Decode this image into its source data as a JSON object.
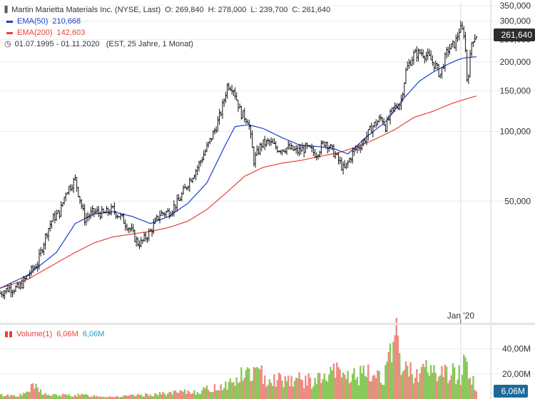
{
  "header": {
    "title": "Martin Marietta Materials Inc. (NYSE, Last)",
    "open": "O: 269,840",
    "high": "H: 278,000",
    "low": "L: 239,700",
    "close": "C: 261,640",
    "ema50_label": "EMA(50)",
    "ema50_value": "210,668",
    "ema200_label": "EMA(200)",
    "ema200_value": "142,603",
    "range": "01.07.1995 - 01.11.2020",
    "range_info": "(EST, 25 Jahre, 1 Monat)"
  },
  "volume_legend": {
    "label": "Volume(1)",
    "value_red": "6,06M",
    "value_teal": "6,06M"
  },
  "colors": {
    "ema50": "#1a3fd0",
    "ema200": "#e8403a",
    "candle": "#111111",
    "vol_up": "#88c95a",
    "vol_down": "#ef8a83",
    "badge": "#2d2d2d",
    "vol_badge": "#1d6a9a"
  },
  "chart_data": {
    "type": "line",
    "title": "Martin Marietta Materials Inc. (NYSE, Last)",
    "xlabel": "",
    "ylabel": "",
    "scale": "log",
    "ylim": [
      15,
      360
    ],
    "xlim": [
      1995.5,
      2020.84
    ],
    "y_ticks": [
      {
        "value": 350,
        "label": "350,000"
      },
      {
        "value": 300,
        "label": "300,000"
      },
      {
        "value": 250,
        "label": "250,000"
      },
      {
        "value": 200,
        "label": "200,000"
      },
      {
        "value": 150,
        "label": "150,000"
      },
      {
        "value": 100,
        "label": "100,000"
      },
      {
        "value": 50,
        "label": "50,000"
      }
    ],
    "x_ticks": [
      {
        "value": 2020.0,
        "label": "Jan '20"
      }
    ],
    "last_price": {
      "value": 261.64,
      "label": "261,640"
    },
    "price_anchors": {
      "x": [
        1995.5,
        1996.0,
        1996.5,
        1997.0,
        1997.5,
        1998.0,
        1998.3,
        1998.7,
        1999.0,
        1999.5,
        2000.0,
        2000.5,
        2001.0,
        2001.5,
        2002.0,
        2002.5,
        2002.8,
        2003.0,
        2003.5,
        2004.0,
        2004.5,
        2005.0,
        2005.5,
        2006.0,
        2006.5,
        2007.0,
        2007.3,
        2007.6,
        2007.9,
        2008.3,
        2008.7,
        2009.0,
        2009.4,
        2009.8,
        2010.3,
        2010.8,
        2011.3,
        2011.8,
        2012.3,
        2012.8,
        2013.3,
        2013.8,
        2014.3,
        2014.8,
        2015.3,
        2015.8,
        2016.0,
        2016.4,
        2016.8,
        2017.1,
        2017.5,
        2017.9,
        2018.3,
        2018.7,
        2018.9,
        2019.3,
        2019.7,
        2019.95,
        2020.2,
        2020.35,
        2020.6,
        2020.84
      ],
      "y": [
        20,
        21,
        21,
        24,
        27,
        37,
        42,
        45,
        55,
        62,
        42,
        45,
        44,
        46,
        42,
        37,
        33,
        33,
        37,
        44,
        45,
        50,
        60,
        70,
        85,
        105,
        125,
        160,
        155,
        120,
        112,
        75,
        88,
        90,
        84,
        85,
        82,
        85,
        80,
        91,
        80,
        68,
        82,
        90,
        105,
        115,
        105,
        125,
        133,
        185,
        215,
        220,
        210,
        190,
        175,
        225,
        240,
        280,
        265,
        160,
        250,
        261.64
      ]
    },
    "ema50": {
      "x": [
        1995.5,
        1997.0,
        1998.5,
        1999.5,
        2000.5,
        2001.5,
        2002.5,
        2003.5,
        2004.5,
        2005.5,
        2006.5,
        2007.5,
        2008.0,
        2008.7,
        2009.5,
        2010.5,
        2011.5,
        2012.5,
        2013.3,
        2014.0,
        2015.0,
        2016.0,
        2017.0,
        2017.8,
        2018.5,
        2019.3,
        2019.9,
        2020.2,
        2020.84
      ],
      "y": [
        21,
        24,
        30,
        40,
        44,
        45,
        43,
        40,
        43,
        49,
        60,
        88,
        105,
        107,
        103,
        94,
        87,
        86,
        84,
        80,
        95,
        110,
        140,
        165,
        180,
        195,
        205,
        208,
        210.668
      ]
    },
    "ema200": {
      "x": [
        1995.5,
        1997.0,
        1998.5,
        1999.5,
        2000.5,
        2001.5,
        2002.5,
        2003.5,
        2004.5,
        2005.5,
        2006.5,
        2007.5,
        2008.5,
        2009.5,
        2010.5,
        2011.5,
        2012.5,
        2013.5,
        2014.5,
        2015.5,
        2016.5,
        2017.5,
        2018.5,
        2019.5,
        2020.0,
        2020.84
      ],
      "y": [
        21,
        23,
        27,
        30,
        33,
        35,
        36,
        37,
        38.5,
        41,
        46,
        54,
        64,
        70,
        73,
        75,
        78,
        81,
        86,
        93,
        102,
        115,
        122,
        132,
        136,
        142.603
      ]
    },
    "volume": {
      "ylim": [
        0,
        58
      ],
      "y_ticks": [
        {
          "value": 40,
          "label": "40,00M"
        },
        {
          "value": 20,
          "label": "20,00M"
        }
      ],
      "last": {
        "value": 6.06,
        "label": "6,06M"
      },
      "anchors_x": [
        1995.5,
        1996.7,
        1997.3,
        1998.0,
        1999.0,
        2000.0,
        2001.0,
        2002.0,
        2003.0,
        2004.0,
        2005.0,
        2006.0,
        2007.0,
        2008.0,
        2008.5,
        2009.0,
        2010.0,
        2011.0,
        2012.0,
        2013.0,
        2013.3,
        2014.0,
        2015.0,
        2016.0,
        2016.6,
        2017.0,
        2018.0,
        2019.0,
        2020.0,
        2020.3,
        2020.84
      ],
      "anchors_y": [
        3,
        3,
        10,
        3,
        3,
        3,
        2,
        2,
        3,
        4,
        5,
        6,
        9,
        14,
        20,
        21,
        16,
        16,
        14,
        17,
        22,
        18,
        19,
        20,
        46,
        22,
        23,
        21,
        20,
        32,
        6
      ]
    }
  }
}
